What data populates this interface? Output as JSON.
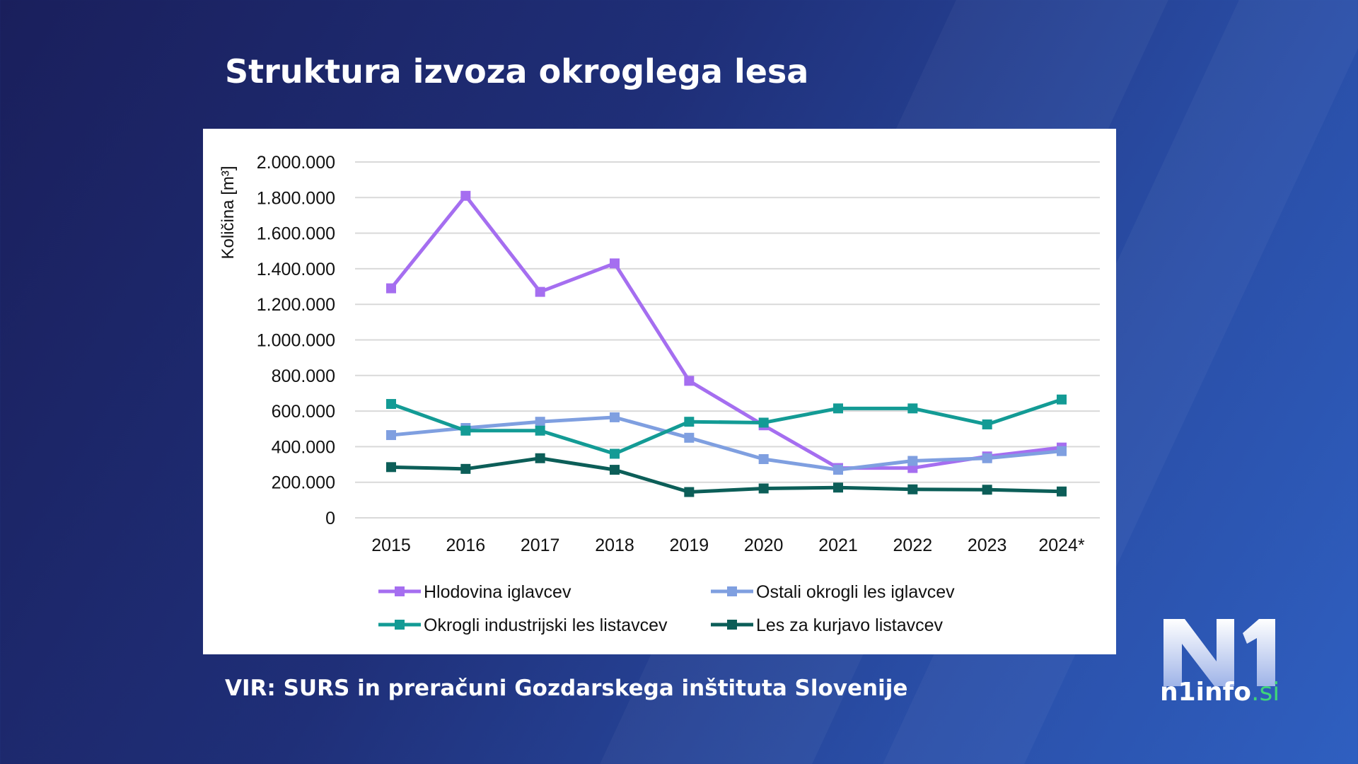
{
  "title": "Struktura izvoza okroglega lesa",
  "source": "VIR: SURS in preračuni Gozdarskega inštituta Slovenije",
  "logo": {
    "mark": "N1",
    "text": "n1info",
    "suffix": ".si"
  },
  "chart_data": {
    "type": "line",
    "title": "",
    "xlabel": "",
    "ylabel": "Količina [m³]",
    "ylim": [
      0,
      2000000
    ],
    "yticks": [
      "0",
      "200.000",
      "400.000",
      "600.000",
      "800.000",
      "1.000.000",
      "1.200.000",
      "1.400.000",
      "1.600.000",
      "1.800.000",
      "2.000.000"
    ],
    "grid": true,
    "legend_placement": "bottom",
    "categories": [
      "2015",
      "2016",
      "2017",
      "2018",
      "2019",
      "2020",
      "2021",
      "2022",
      "2023",
      "2024*"
    ],
    "series": [
      {
        "name": "Hlodovina iglavcev",
        "color": "#a56ef0",
        "values": [
          1290000,
          1810000,
          1270000,
          1430000,
          770000,
          520000,
          280000,
          280000,
          345000,
          395000
        ]
      },
      {
        "name": "Ostali okrogli les iglavcev",
        "color": "#7f9fe0",
        "values": [
          465000,
          505000,
          540000,
          565000,
          450000,
          330000,
          270000,
          320000,
          335000,
          375000
        ]
      },
      {
        "name": "Okrogli industrijski les listavcev",
        "color": "#139b95",
        "values": [
          640000,
          490000,
          490000,
          360000,
          540000,
          535000,
          615000,
          615000,
          525000,
          665000
        ]
      },
      {
        "name": "Les za kurjavo listavcev",
        "color": "#0c5e58",
        "values": [
          285000,
          275000,
          335000,
          270000,
          145000,
          165000,
          170000,
          160000,
          158000,
          148000
        ]
      }
    ]
  }
}
